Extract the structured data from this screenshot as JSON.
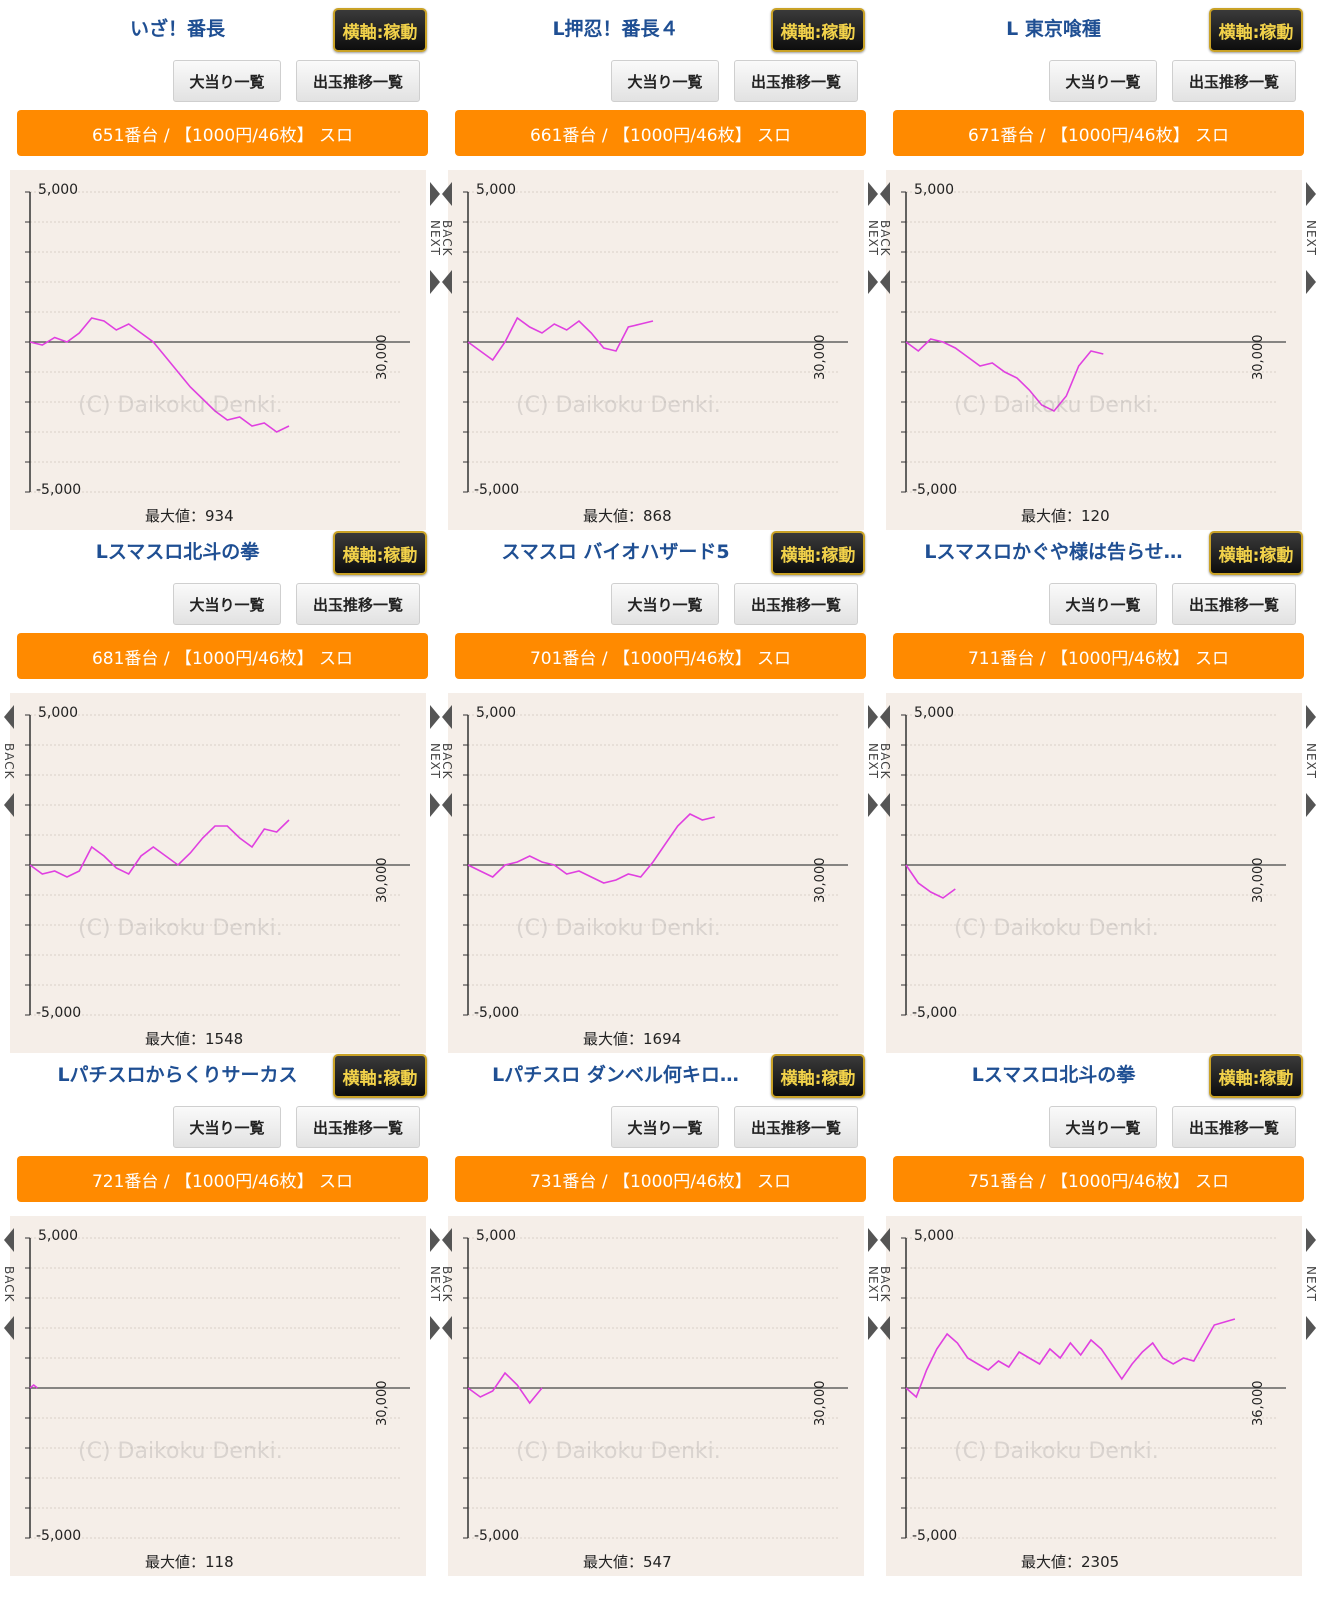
{
  "common": {
    "axis_button": "横軸:稼動",
    "hits_button": "大当り一覧",
    "trend_button": "出玉推移一覧",
    "y_top_label": "5,000",
    "y_bottom_label": "-5,000",
    "max_prefix": "最大値：",
    "watermark": "(C) Daikoku Denki.",
    "back_label": "BACK",
    "next_label": "NEXT",
    "colors": {
      "line": "#e040e0",
      "orange": "#ff8a00",
      "plot_bg": "#f5eee8",
      "title": "#1f4f93"
    }
  },
  "cards": [
    {
      "title": "いざ！番長",
      "machine": "651番台 / 【1000円/46枚】 スロ",
      "max": "934",
      "x_axis_label": "30,000",
      "nav": "next",
      "chart_data": {
        "type": "line",
        "ylim": [
          -5000,
          5000
        ],
        "xlim": [
          0,
          30000
        ],
        "x": [
          0,
          1000,
          2000,
          3000,
          4000,
          5000,
          6000,
          7000,
          8000,
          9000,
          10000,
          11000,
          12000,
          13000,
          14000,
          15000,
          16000,
          17000,
          18000,
          19000,
          20000,
          21000
        ],
        "y": [
          0,
          -100,
          150,
          0,
          300,
          800,
          700,
          400,
          600,
          300,
          0,
          -500,
          -1000,
          -1500,
          -1900,
          -2300,
          -2600,
          -2500,
          -2800,
          -2700,
          -3000,
          -2800
        ]
      }
    },
    {
      "title": "L押忍！番長４",
      "machine": "661番台 / 【1000円/46枚】 スロ",
      "max": "868",
      "x_axis_label": "30,000",
      "nav": "both",
      "chart_data": {
        "type": "line",
        "ylim": [
          -5000,
          5000
        ],
        "xlim": [
          0,
          30000
        ],
        "x": [
          0,
          1000,
          2000,
          3000,
          4000,
          5000,
          6000,
          7000,
          8000,
          9000,
          10000,
          11000,
          12000,
          13000,
          14000,
          15000
        ],
        "y": [
          0,
          -300,
          -600,
          0,
          800,
          500,
          300,
          600,
          400,
          700,
          300,
          -200,
          -300,
          500,
          600,
          700
        ]
      }
    },
    {
      "title": "L 東京喰種",
      "machine": "671番台 / 【1000円/46枚】 スロ",
      "max": "120",
      "x_axis_label": "30,000",
      "nav": "both",
      "chart_data": {
        "type": "line",
        "ylim": [
          -5000,
          5000
        ],
        "xlim": [
          0,
          30000
        ],
        "x": [
          0,
          1000,
          2000,
          3000,
          4000,
          5000,
          6000,
          7000,
          8000,
          9000,
          10000,
          11000,
          12000,
          13000,
          14000,
          15000,
          16000
        ],
        "y": [
          0,
          -300,
          100,
          0,
          -200,
          -500,
          -800,
          -700,
          -1000,
          -1200,
          -1600,
          -2100,
          -2300,
          -1800,
          -800,
          -300,
          -400
        ]
      }
    },
    {
      "title": "Lスマスロ北斗の拳",
      "machine": "681番台 / 【1000円/46枚】 スロ",
      "max": "1548",
      "x_axis_label": "30,000",
      "nav": "both",
      "chart_data": {
        "type": "line",
        "ylim": [
          -5000,
          5000
        ],
        "xlim": [
          0,
          30000
        ],
        "x": [
          0,
          1000,
          2000,
          3000,
          4000,
          5000,
          6000,
          7000,
          8000,
          9000,
          10000,
          11000,
          12000,
          13000,
          14000,
          15000,
          16000,
          17000,
          18000,
          19000,
          20000,
          21000
        ],
        "y": [
          0,
          -300,
          -200,
          -400,
          -200,
          600,
          300,
          -100,
          -300,
          300,
          600,
          300,
          0,
          400,
          900,
          1300,
          1300,
          900,
          600,
          1200,
          1100,
          1500
        ]
      }
    },
    {
      "title": "スマスロ バイオハザード5",
      "machine": "701番台 / 【1000円/46枚】 スロ",
      "max": "1694",
      "x_axis_label": "30,000",
      "nav": "both",
      "chart_data": {
        "type": "line",
        "ylim": [
          -5000,
          5000
        ],
        "xlim": [
          0,
          30000
        ],
        "x": [
          0,
          1000,
          2000,
          3000,
          4000,
          5000,
          6000,
          7000,
          8000,
          9000,
          10000,
          11000,
          12000,
          13000,
          14000,
          15000,
          16000,
          17000,
          18000,
          19000,
          20000
        ],
        "y": [
          0,
          -200,
          -400,
          0,
          100,
          300,
          100,
          0,
          -300,
          -200,
          -400,
          -600,
          -500,
          -300,
          -400,
          100,
          700,
          1300,
          1700,
          1500,
          1600
        ]
      }
    },
    {
      "title": "Lスマスロかぐや様は告らせ…",
      "machine": "711番台 / 【1000円/46枚】 スロ",
      "max": "",
      "x_axis_label": "30,000",
      "nav": "both",
      "chart_data": {
        "type": "line",
        "ylim": [
          -5000,
          5000
        ],
        "xlim": [
          0,
          30000
        ],
        "x": [
          0,
          1000,
          2000,
          3000,
          4000
        ],
        "y": [
          0,
          -600,
          -900,
          -1100,
          -800
        ]
      }
    },
    {
      "title": "Lパチスロからくりサーカス",
      "machine": "721番台 / 【1000円/46枚】 スロ",
      "max": "118",
      "x_axis_label": "30,000",
      "nav": "both",
      "chart_data": {
        "type": "line",
        "ylim": [
          -5000,
          5000
        ],
        "xlim": [
          0,
          30000
        ],
        "x": [
          0,
          300,
          600
        ],
        "y": [
          0,
          100,
          0
        ]
      }
    },
    {
      "title": "Lパチスロ ダンベル何キロ…",
      "machine": "731番台 / 【1000円/46枚】 スロ",
      "max": "547",
      "x_axis_label": "30,000",
      "nav": "both",
      "chart_data": {
        "type": "line",
        "ylim": [
          -5000,
          5000
        ],
        "xlim": [
          0,
          30000
        ],
        "x": [
          0,
          1000,
          2000,
          3000,
          4000,
          5000,
          6000
        ],
        "y": [
          0,
          -300,
          -100,
          500,
          100,
          -500,
          0
        ]
      }
    },
    {
      "title": "Lスマスロ北斗の拳",
      "machine": "751番台 / 【1000円/46枚】 スロ",
      "max": "2305",
      "x_axis_label": "36,000",
      "nav": "both",
      "chart_data": {
        "type": "line",
        "ylim": [
          -5000,
          5000
        ],
        "xlim": [
          0,
          36000
        ],
        "x": [
          0,
          1000,
          2000,
          3000,
          4000,
          5000,
          6000,
          7000,
          8000,
          9000,
          10000,
          11000,
          12000,
          13000,
          14000,
          15000,
          16000,
          17000,
          18000,
          19000,
          20000,
          21000,
          22000,
          23000,
          24000,
          25000,
          26000,
          27000,
          28000,
          29000,
          30000,
          31000,
          32000
        ],
        "y": [
          0,
          -300,
          600,
          1300,
          1800,
          1500,
          1000,
          800,
          600,
          900,
          700,
          1200,
          1000,
          800,
          1300,
          1000,
          1500,
          1100,
          1600,
          1300,
          800,
          300,
          800,
          1200,
          1500,
          1000,
          800,
          1000,
          900,
          1500,
          2100,
          2200,
          2300
        ]
      }
    }
  ]
}
